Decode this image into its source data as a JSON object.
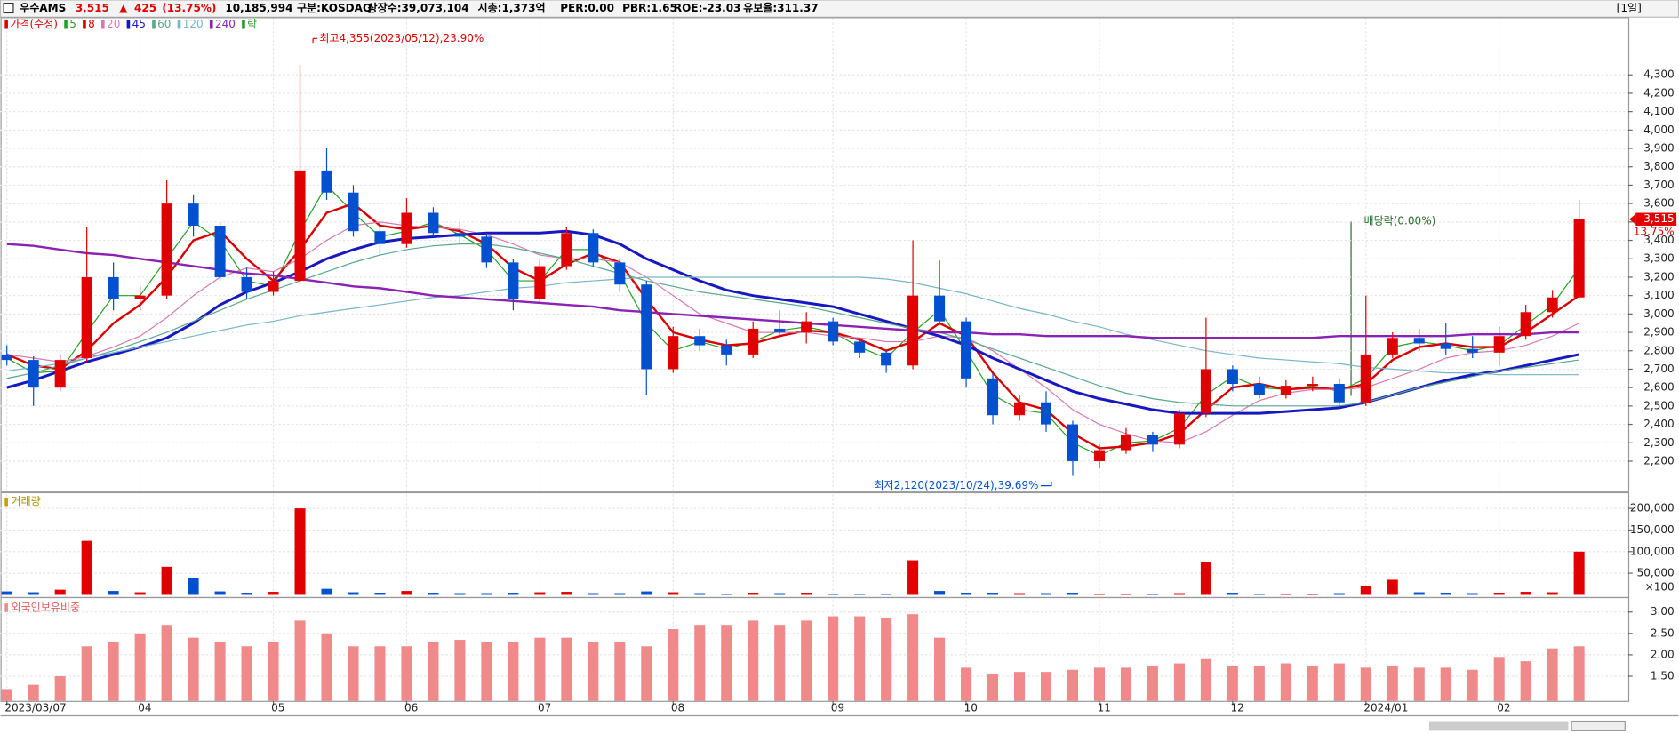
{
  "header": {
    "name": "우수AMS",
    "price": "3,515",
    "arrow": "▲",
    "change": "425",
    "change_pct": "(13.75%)",
    "volume": "10,185,994",
    "market": "구분:KOSDAQ",
    "shares": "상장수:39,073,104",
    "cap": "시총:1,373억",
    "per": "PER:0.00",
    "pbr": "PBR:1.65",
    "roe": "ROE:-23.03",
    "reserve": "유보율:311.37",
    "period": "[1일]"
  },
  "chart_data": [
    {
      "type": "candlestick",
      "name": "가격(수정)",
      "legend_extra": "락",
      "up_color": "#e00000",
      "down_color": "#0050d0",
      "grid": true,
      "categories": [
        "2023/03/07",
        null,
        null,
        null,
        null,
        "04",
        null,
        null,
        null,
        null,
        "05",
        null,
        null,
        null,
        null,
        "06",
        null,
        null,
        null,
        null,
        "07",
        null,
        null,
        null,
        null,
        "08",
        null,
        null,
        null,
        null,
        null,
        "09",
        null,
        null,
        null,
        null,
        "10",
        null,
        null,
        null,
        null,
        "11",
        null,
        null,
        null,
        null,
        "12",
        null,
        null,
        null,
        null,
        "2024/01",
        null,
        null,
        null,
        null,
        "02",
        null,
        null,
        null
      ],
      "open": [
        2780,
        2750,
        2600,
        2760,
        3200,
        3080,
        3100,
        3600,
        3480,
        3200,
        3120,
        3180,
        3780,
        3660,
        3450,
        3380,
        3550,
        3440,
        3420,
        3280,
        3080,
        3260,
        3440,
        3280,
        3160,
        2700,
        2880,
        2830,
        2780,
        2920,
        2900,
        2960,
        2850,
        2790,
        2720,
        3100,
        2960,
        2650,
        2450,
        2520,
        2400,
        2200,
        2260,
        2340,
        2290,
        2460,
        2700,
        2620,
        2560,
        2610,
        2620,
        2520,
        2780,
        2870,
        2840,
        2810,
        2790,
        2880,
        3010,
        3090
      ],
      "high": [
        2830,
        2770,
        2780,
        3470,
        3280,
        3150,
        3730,
        3650,
        3500,
        3250,
        3230,
        4355,
        3900,
        3700,
        3500,
        3630,
        3580,
        3500,
        3440,
        3300,
        3300,
        3470,
        3460,
        3300,
        3180,
        2930,
        2920,
        2860,
        2960,
        3020,
        3010,
        2980,
        2870,
        2800,
        3400,
        3290,
        2980,
        2680,
        2560,
        2580,
        2420,
        2290,
        2380,
        2360,
        2480,
        2980,
        2720,
        2660,
        2640,
        2660,
        2650,
        3100,
        2900,
        2920,
        2950,
        2880,
        2930,
        3050,
        3130,
        3620
      ],
      "low": [
        2720,
        2500,
        2580,
        2740,
        3020,
        3020,
        3080,
        3420,
        3180,
        3080,
        3100,
        3160,
        3620,
        3420,
        3320,
        3360,
        3420,
        3380,
        3250,
        3020,
        3060,
        3240,
        3260,
        3120,
        2560,
        2680,
        2800,
        2720,
        2760,
        2880,
        2840,
        2830,
        2760,
        2680,
        2700,
        2940,
        2600,
        2400,
        2420,
        2360,
        2120,
        2160,
        2240,
        2250,
        2270,
        2440,
        2580,
        2540,
        2540,
        2580,
        2490,
        2500,
        2760,
        2800,
        2780,
        2760,
        2720,
        2860,
        2980,
        3080
      ],
      "close": [
        2750,
        2600,
        2750,
        3200,
        3080,
        3100,
        3600,
        3480,
        3200,
        3120,
        3180,
        3780,
        3660,
        3450,
        3380,
        3550,
        3440,
        3420,
        3280,
        3080,
        3260,
        3440,
        3280,
        3160,
        2700,
        2880,
        2830,
        2780,
        2920,
        2900,
        2960,
        2850,
        2790,
        2720,
        3100,
        2960,
        2650,
        2450,
        2520,
        2400,
        2200,
        2260,
        2340,
        2290,
        2460,
        2700,
        2620,
        2560,
        2610,
        2620,
        2520,
        2780,
        2870,
        2840,
        2810,
        2790,
        2880,
        3010,
        3090,
        3515
      ],
      "series": [
        {
          "name": "5",
          "color": "#22a022",
          "width": 1,
          "values": [
            2760,
            2680,
            2690,
            2900,
            3100,
            3100,
            3300,
            3500,
            3400,
            3180,
            3150,
            3450,
            3700,
            3550,
            3420,
            3450,
            3500,
            3430,
            3350,
            3180,
            3180,
            3350,
            3350,
            3220,
            2950,
            2800,
            2850,
            2810,
            2850,
            2910,
            2930,
            2900,
            2820,
            2760,
            2900,
            3020,
            2800,
            2560,
            2480,
            2460,
            2300,
            2230,
            2300,
            2310,
            2380,
            2560,
            2660,
            2600,
            2590,
            2610,
            2580,
            2650,
            2820,
            2850,
            2830,
            2800,
            2830,
            2940,
            3050,
            3250
          ]
        },
        {
          "name": "8",
          "color": "#d80000",
          "width": 2,
          "values": [
            2780,
            2720,
            2700,
            2800,
            2950,
            3050,
            3200,
            3400,
            3450,
            3300,
            3180,
            3350,
            3550,
            3600,
            3480,
            3460,
            3480,
            3450,
            3380,
            3250,
            3180,
            3270,
            3330,
            3280,
            3080,
            2900,
            2860,
            2830,
            2840,
            2880,
            2910,
            2900,
            2860,
            2800,
            2850,
            2950,
            2880,
            2680,
            2520,
            2480,
            2350,
            2270,
            2280,
            2300,
            2350,
            2480,
            2600,
            2620,
            2590,
            2600,
            2590,
            2620,
            2750,
            2820,
            2840,
            2820,
            2820,
            2900,
            3000,
            3100
          ]
        },
        {
          "name": "20",
          "color": "#d878b0",
          "width": 1,
          "values": [
            2780,
            2760,
            2740,
            2770,
            2820,
            2880,
            2980,
            3100,
            3200,
            3250,
            3230,
            3300,
            3400,
            3480,
            3500,
            3480,
            3470,
            3460,
            3430,
            3380,
            3320,
            3300,
            3300,
            3280,
            3200,
            3100,
            3000,
            2950,
            2900,
            2900,
            2900,
            2880,
            2870,
            2850,
            2850,
            2880,
            2870,
            2800,
            2700,
            2600,
            2480,
            2400,
            2350,
            2310,
            2300,
            2360,
            2450,
            2530,
            2570,
            2590,
            2590,
            2600,
            2650,
            2700,
            2760,
            2790,
            2800,
            2830,
            2880,
            2950
          ]
        },
        {
          "name": "45",
          "color": "#1818c0",
          "width": 2.5,
          "values": [
            2600,
            2640,
            2690,
            2740,
            2780,
            2820,
            2870,
            2950,
            3050,
            3120,
            3170,
            3230,
            3300,
            3350,
            3390,
            3410,
            3420,
            3430,
            3440,
            3440,
            3440,
            3450,
            3430,
            3380,
            3300,
            3240,
            3180,
            3130,
            3100,
            3080,
            3060,
            3040,
            3000,
            2960,
            2920,
            2880,
            2830,
            2760,
            2700,
            2640,
            2580,
            2540,
            2510,
            2480,
            2460,
            2460,
            2460,
            2460,
            2470,
            2480,
            2490,
            2520,
            2560,
            2600,
            2640,
            2670,
            2690,
            2720,
            2750,
            2780
          ]
        },
        {
          "name": "60",
          "color": "#58a888",
          "width": 1,
          "values": [
            2650,
            2680,
            2720,
            2760,
            2800,
            2850,
            2900,
            2960,
            3020,
            3080,
            3130,
            3180,
            3230,
            3280,
            3320,
            3350,
            3370,
            3380,
            3380,
            3360,
            3330,
            3300,
            3260,
            3220,
            3180,
            3150,
            3120,
            3100,
            3080,
            3060,
            3040,
            3010,
            2980,
            2950,
            2920,
            2900,
            2860,
            2810,
            2760,
            2710,
            2660,
            2610,
            2570,
            2540,
            2520,
            2510,
            2500,
            2500,
            2500,
            2500,
            2500,
            2520,
            2560,
            2600,
            2630,
            2660,
            2690,
            2710,
            2730,
            2750
          ]
        },
        {
          "name": "120",
          "color": "#78b4c8",
          "width": 1,
          "values": [
            2690,
            2710,
            2730,
            2760,
            2790,
            2820,
            2850,
            2880,
            2910,
            2940,
            2960,
            2990,
            3010,
            3030,
            3050,
            3070,
            3090,
            3100,
            3120,
            3140,
            3150,
            3170,
            3180,
            3190,
            3200,
            3200,
            3200,
            3200,
            3200,
            3200,
            3200,
            3200,
            3200,
            3190,
            3170,
            3140,
            3110,
            3070,
            3030,
            3000,
            2960,
            2930,
            2890,
            2860,
            2830,
            2800,
            2780,
            2760,
            2750,
            2740,
            2730,
            2710,
            2700,
            2690,
            2680,
            2680,
            2670,
            2670,
            2670,
            2670
          ]
        },
        {
          "name": "240",
          "color": "#8a22b4",
          "width": 2,
          "values": [
            3380,
            3370,
            3350,
            3330,
            3320,
            3300,
            3280,
            3260,
            3240,
            3220,
            3210,
            3190,
            3170,
            3150,
            3140,
            3120,
            3100,
            3090,
            3080,
            3070,
            3060,
            3050,
            3040,
            3020,
            3010,
            3000,
            2990,
            2980,
            2970,
            2960,
            2950,
            2940,
            2930,
            2920,
            2910,
            2900,
            2900,
            2890,
            2890,
            2880,
            2880,
            2880,
            2880,
            2870,
            2870,
            2870,
            2870,
            2870,
            2870,
            2870,
            2880,
            2880,
            2880,
            2880,
            2880,
            2890,
            2890,
            2890,
            2900,
            2900
          ]
        }
      ],
      "ylim": [
        2043,
        4608
      ],
      "yticks": [
        {
          "value": 2200,
          "label": "2,200"
        },
        {
          "value": 2300,
          "label": "2,300"
        },
        {
          "value": 2400,
          "label": "2,400"
        },
        {
          "value": 2500,
          "label": "2,500"
        },
        {
          "value": 2600,
          "label": "2,600"
        },
        {
          "value": 2700,
          "label": "2,700"
        },
        {
          "value": 2800,
          "label": "2,800"
        },
        {
          "value": 2900,
          "label": "2,900"
        },
        {
          "value": 3000,
          "label": "3,000"
        },
        {
          "value": 3100,
          "label": "3,100"
        },
        {
          "value": 3200,
          "label": "3,200"
        },
        {
          "value": 3300,
          "label": "3,300"
        },
        {
          "value": 3400,
          "label": "3,400"
        },
        {
          "value": 3500,
          "label": "3,500"
        },
        {
          "value": 3600,
          "label": "3,600"
        },
        {
          "value": 3700,
          "label": "3,700"
        },
        {
          "value": 3800,
          "label": "3,800"
        },
        {
          "value": 3900,
          "label": "3,900"
        },
        {
          "value": 4000,
          "label": "4,000"
        },
        {
          "value": 4100,
          "label": "4,100"
        },
        {
          "value": 4200,
          "label": "4,200"
        },
        {
          "value": 4300,
          "label": "4,300"
        }
      ],
      "annotations": [
        "최고4,355(2023/05/12),23.90%",
        "최저2,120(2023/10/24),39.69%",
        "배당락(0.00%)"
      ],
      "last_label": "3,515",
      "last_change_label": "13.75%"
    },
    {
      "type": "bar",
      "title": "거래량",
      "up_color": "#e00000",
      "down_color": "#0050d0",
      "grid": true,
      "unit_label": "×100",
      "values": [
        8000,
        6000,
        12000,
        125000,
        9000,
        6000,
        65000,
        40000,
        8000,
        5000,
        7000,
        200000,
        14000,
        6000,
        5000,
        9000,
        5000,
        4000,
        4000,
        5000,
        6000,
        7000,
        4000,
        4000,
        8000,
        6000,
        4000,
        3000,
        5000,
        4000,
        5000,
        3000,
        3000,
        3000,
        80000,
        9000,
        5000,
        5000,
        4000,
        4000,
        5000,
        3000,
        3000,
        3000,
        4000,
        75000,
        5000,
        3000,
        3000,
        3000,
        4000,
        20000,
        35000,
        6000,
        5000,
        4000,
        5000,
        7000,
        6000,
        100000
      ],
      "ylim": [
        0,
        232500
      ],
      "yticks": [
        {
          "value": 50000,
          "label": "50,000"
        },
        {
          "value": 100000,
          "label": "100,000"
        },
        {
          "value": 150000,
          "label": "150,000"
        },
        {
          "value": 200000,
          "label": "200,000"
        }
      ]
    },
    {
      "type": "bar",
      "title": "외국인보유비중",
      "color": "#f08a8a",
      "grid": true,
      "values": [
        1.2,
        1.3,
        1.5,
        2.2,
        2.3,
        2.5,
        2.7,
        2.4,
        2.3,
        2.2,
        2.3,
        2.8,
        2.5,
        2.2,
        2.2,
        2.2,
        2.3,
        2.35,
        2.3,
        2.3,
        2.4,
        2.4,
        2.3,
        2.3,
        2.2,
        2.6,
        2.7,
        2.7,
        2.8,
        2.7,
        2.8,
        2.9,
        2.9,
        2.85,
        2.95,
        2.4,
        1.7,
        1.55,
        1.6,
        1.6,
        1.65,
        1.7,
        1.7,
        1.75,
        1.8,
        1.9,
        1.75,
        1.75,
        1.8,
        1.75,
        1.8,
        1.7,
        1.75,
        1.7,
        1.7,
        1.65,
        1.95,
        1.85,
        2.15,
        2.2
      ],
      "ylim": [
        0.925,
        3.275
      ],
      "yticks": [
        {
          "value": 1.5,
          "label": "1.50"
        },
        {
          "value": 2,
          "label": "2.00"
        },
        {
          "value": 2.5,
          "label": "2.50"
        },
        {
          "value": 3,
          "label": "3.00"
        }
      ]
    }
  ]
}
